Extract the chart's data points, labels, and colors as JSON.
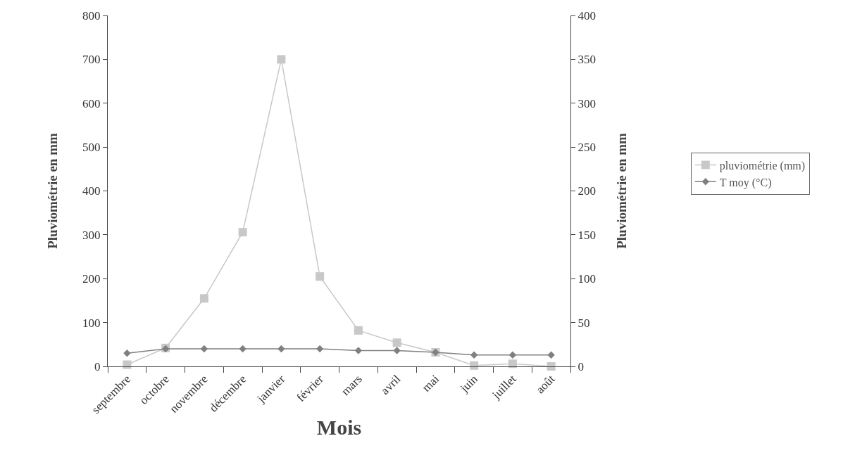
{
  "chart_data": {
    "type": "line",
    "xlabel": "Mois",
    "ylabel": "Pluviométrie en mm",
    "y2label": "Pluviométrie en mm",
    "categories": [
      "septembre",
      "octobre",
      "novembre",
      "décembre",
      "janvier",
      "février",
      "mars",
      "avril",
      "mai",
      "juin",
      "juillet",
      "août"
    ],
    "series": [
      {
        "name": "pluviométrie (mm)",
        "color": "#c8c8c8",
        "marker": "square",
        "values": [
          4,
          42,
          155,
          306,
          700,
          205,
          82,
          54,
          32,
          2,
          6,
          0
        ]
      },
      {
        "name": "T moy (°C)",
        "color": "#808080",
        "marker": "diamond",
        "axis": "y2",
        "values": [
          15,
          20,
          20,
          20,
          20,
          20,
          18,
          18,
          16,
          13,
          13,
          13
        ]
      }
    ],
    "ylim": [
      0,
      800
    ],
    "yticks": [
      0,
      100,
      200,
      300,
      400,
      500,
      600,
      700,
      800
    ],
    "y2lim": [
      0,
      400
    ],
    "y2ticks": [
      0,
      50,
      100,
      150,
      200,
      250,
      300,
      350,
      400
    ],
    "grid": false,
    "legend": "right",
    "line_style": "solid"
  }
}
